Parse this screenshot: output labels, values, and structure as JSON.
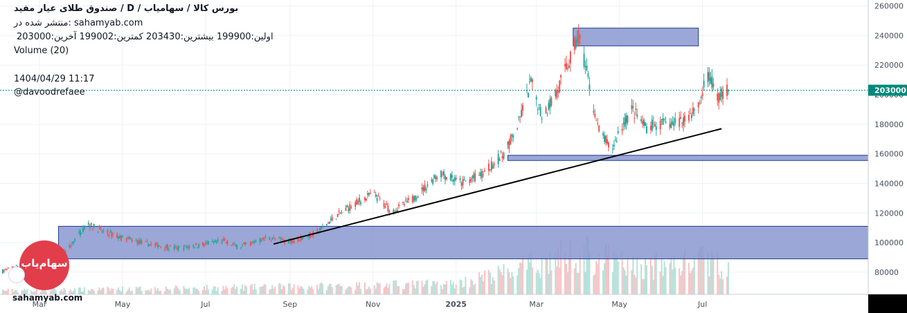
{
  "header": {
    "title": "صندوق طلای عیار مفید /  D  /  بورس کالا / سهامیاب",
    "published": "منتشر شده در: sahamyab.com",
    "ohlc": "اولین:199900  بیشترین:203430  کمترین:199002  آخرین:203000",
    "volume_label": "Volume (20)",
    "datetime": "1404/04/29 11:17",
    "user": "@davoodrefaee"
  },
  "logo": {
    "text": "سهام‌یاب"
  },
  "watermark": "sahamyab.com",
  "colors": {
    "up": "#26a69a",
    "down": "#ef5350",
    "vol_up": "#b7e1d9",
    "vol_down": "#f7c4c6",
    "zone_fill": "#8a98cf",
    "zone_stroke": "#1f3a93",
    "last_price_bg": "#00897b",
    "grid": "#eef1f6"
  },
  "chart_data": {
    "type": "candlestick",
    "interval": "D",
    "y_axis": {
      "ticks": [
        80000,
        100000,
        120000,
        140000,
        160000,
        180000,
        200000,
        220000,
        240000,
        260000
      ],
      "ylim": [
        65000,
        264000
      ],
      "position": "right"
    },
    "x_axis": {
      "ticks": [
        {
          "label": "Mar",
          "date": "2024-03-01"
        },
        {
          "label": "May",
          "date": "2024-05-01"
        },
        {
          "label": "Jul",
          "date": "2024-07-01"
        },
        {
          "label": "Sep",
          "date": "2024-09-01"
        },
        {
          "label": "Nov",
          "date": "2024-11-01"
        },
        {
          "label": "2025",
          "date": "2025-01-01",
          "bold": true
        },
        {
          "label": "Mar",
          "date": "2025-03-01"
        },
        {
          "label": "May",
          "date": "2025-05-01"
        },
        {
          "label": "Jul",
          "date": "2025-07-01"
        }
      ],
      "start": "2024-02-01",
      "end": "2025-07-20"
    },
    "last_price": {
      "value": 203000,
      "label": "203000"
    },
    "price_path": [
      {
        "date": "2024-02-01",
        "close": 80000
      },
      {
        "date": "2024-02-20",
        "close": 86000
      },
      {
        "date": "2024-03-10",
        "close": 89000
      },
      {
        "date": "2024-03-20",
        "close": 93000
      },
      {
        "date": "2024-04-05",
        "close": 113000
      },
      {
        "date": "2024-04-15",
        "close": 108000
      },
      {
        "date": "2024-05-01",
        "close": 103000
      },
      {
        "date": "2024-05-20",
        "close": 99000
      },
      {
        "date": "2024-06-10",
        "close": 96000
      },
      {
        "date": "2024-07-01",
        "close": 99000
      },
      {
        "date": "2024-07-15",
        "close": 101000
      },
      {
        "date": "2024-07-25",
        "close": 97000
      },
      {
        "date": "2024-08-15",
        "close": 103000
      },
      {
        "date": "2024-09-01",
        "close": 101000
      },
      {
        "date": "2024-09-20",
        "close": 106000
      },
      {
        "date": "2024-10-05",
        "close": 118000
      },
      {
        "date": "2024-10-20",
        "close": 127000
      },
      {
        "date": "2024-11-01",
        "close": 133000
      },
      {
        "date": "2024-11-15",
        "close": 121000
      },
      {
        "date": "2024-12-01",
        "close": 130000
      },
      {
        "date": "2024-12-20",
        "close": 147000
      },
      {
        "date": "2025-01-05",
        "close": 140000
      },
      {
        "date": "2025-01-20",
        "close": 146000
      },
      {
        "date": "2025-02-05",
        "close": 160000
      },
      {
        "date": "2025-02-15",
        "close": 178000
      },
      {
        "date": "2025-02-25",
        "close": 208000
      },
      {
        "date": "2025-03-05",
        "close": 186000
      },
      {
        "date": "2025-03-15",
        "close": 200000
      },
      {
        "date": "2025-03-25",
        "close": 222000
      },
      {
        "date": "2025-04-01",
        "close": 240000
      },
      {
        "date": "2025-04-08",
        "close": 210000
      },
      {
        "date": "2025-04-15",
        "close": 178000
      },
      {
        "date": "2025-04-25",
        "close": 162000
      },
      {
        "date": "2025-05-01",
        "close": 175000
      },
      {
        "date": "2025-05-10",
        "close": 190000
      },
      {
        "date": "2025-05-20",
        "close": 178000
      },
      {
        "date": "2025-06-01",
        "close": 180000
      },
      {
        "date": "2025-06-15",
        "close": 182000
      },
      {
        "date": "2025-06-28",
        "close": 192000
      },
      {
        "date": "2025-07-05",
        "close": 214000
      },
      {
        "date": "2025-07-12",
        "close": 198000
      },
      {
        "date": "2025-07-20",
        "close": 203000
      }
    ],
    "volume_levels": [
      {
        "date": "2024-02-01",
        "v": 0.05
      },
      {
        "date": "2024-05-01",
        "v": 0.07
      },
      {
        "date": "2024-09-01",
        "v": 0.1
      },
      {
        "date": "2024-11-01",
        "v": 0.12
      },
      {
        "date": "2025-01-01",
        "v": 0.14
      },
      {
        "date": "2025-02-15",
        "v": 0.32
      },
      {
        "date": "2025-04-01",
        "v": 0.55
      },
      {
        "date": "2025-05-15",
        "v": 0.34
      },
      {
        "date": "2025-07-05",
        "v": 0.45
      },
      {
        "date": "2025-07-20",
        "v": 0.35
      }
    ],
    "zones": [
      {
        "from": "2024-03-15",
        "to": "right-edge",
        "y1": 89000,
        "y2": 111000
      },
      {
        "from": "2025-02-08",
        "to": "right-edge",
        "y1": 155500,
        "y2": 159000
      },
      {
        "from": "2025-03-28",
        "to": "2025-06-28",
        "y1": 233000,
        "y2": 245000
      }
    ],
    "trendline": {
      "from": {
        "date": "2024-08-20",
        "price": 99000
      },
      "to": {
        "date": "2025-07-15",
        "price": 177000
      }
    }
  }
}
